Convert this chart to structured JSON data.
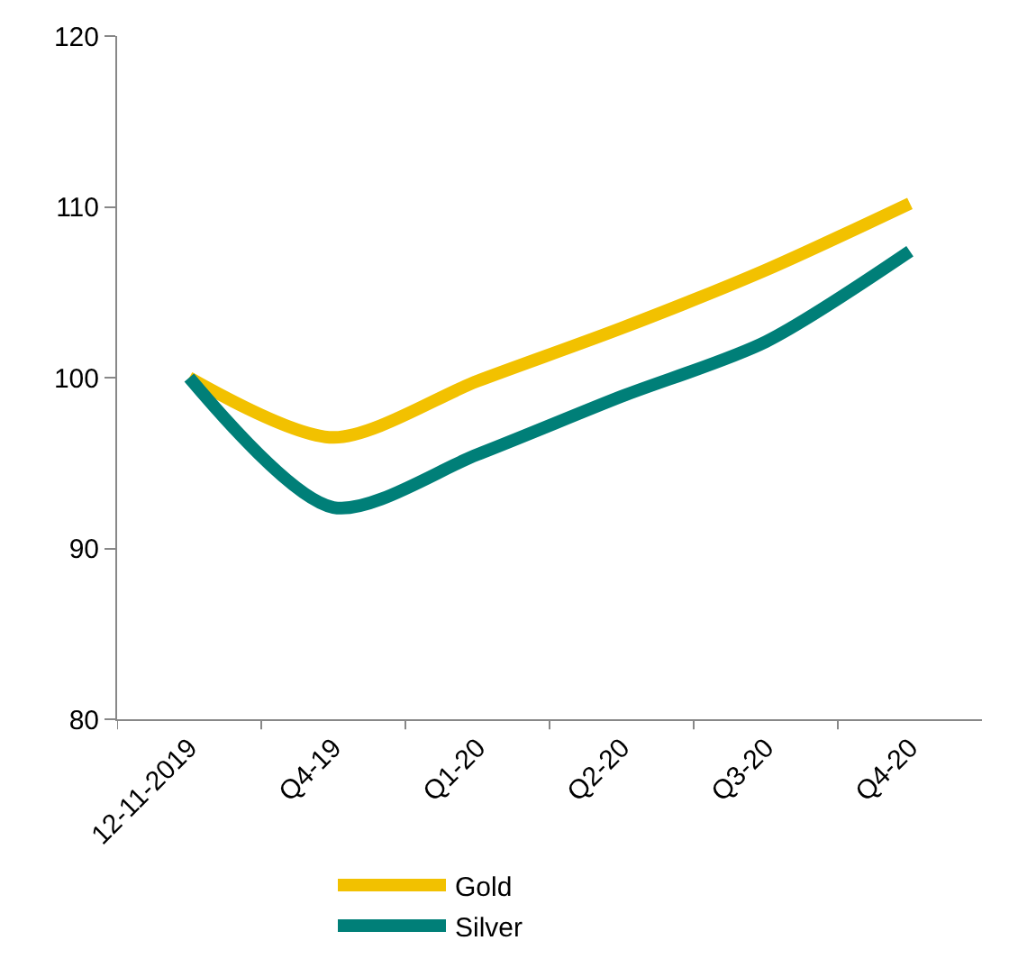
{
  "chart_data": {
    "type": "line",
    "categories": [
      "12-11-2019",
      "Q4-19",
      "Q1-20",
      "Q2-20",
      "Q3-20",
      "Q4-20"
    ],
    "series": [
      {
        "name": "Gold",
        "color": "#f2c100",
        "values": [
          100,
          96.5,
          99.8,
          102.9,
          106.3,
          110.2
        ]
      },
      {
        "name": "Silver",
        "color": "#007f78",
        "values": [
          100,
          92.4,
          95.5,
          98.9,
          102.1,
          107.4
        ]
      }
    ],
    "ylim": [
      80,
      120
    ],
    "yticks": [
      80,
      90,
      100,
      110,
      120
    ],
    "legend": "bottom",
    "marker": "none",
    "line_style": "solid"
  }
}
